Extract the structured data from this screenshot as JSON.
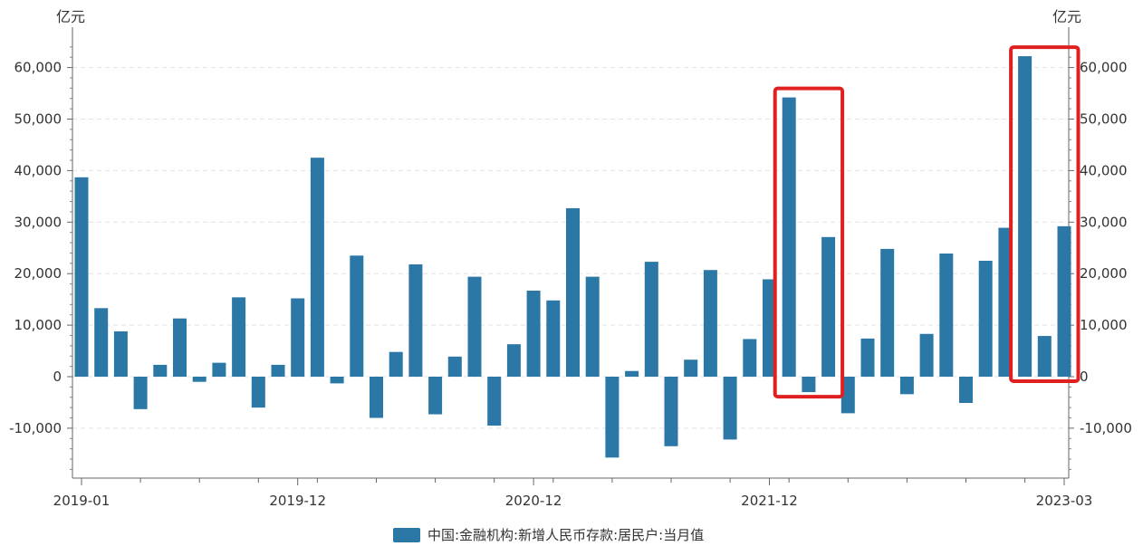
{
  "chart_data": {
    "type": "bar",
    "unit_left": "亿元",
    "unit_right": "亿元",
    "ylim": [
      -20000,
      65000
    ],
    "yticks": [
      -10000,
      0,
      10000,
      20000,
      30000,
      40000,
      50000,
      60000
    ],
    "ytick_labels": [
      "-10,000",
      "0",
      "10,000",
      "20,000",
      "30,000",
      "40,000",
      "50,000",
      "60,000"
    ],
    "xtick_labels": [
      "2019-01",
      "2019-12",
      "2020-12",
      "2021-12",
      "2023-03"
    ],
    "x_first": "2019-01",
    "x_last": "2023-03",
    "grid": true,
    "legend_position": "bottom",
    "series": [
      {
        "name": "中国:金融机构:新增人民币存款:居民户:当月值",
        "color": "#2b78a7",
        "values": [
          38700,
          13300,
          8800,
          -6300,
          2300,
          11300,
          -1000,
          2700,
          15400,
          -6000,
          2300,
          15200,
          42500,
          -1300,
          23500,
          -8000,
          4800,
          21800,
          -7300,
          3900,
          19400,
          -9500,
          6300,
          16700,
          14800,
          32700,
          19400,
          -15700,
          1100,
          22300,
          -13500,
          3300,
          20700,
          -12200,
          7300,
          18900,
          54200,
          -3000,
          27100,
          -7100,
          7400,
          24800,
          -3400,
          8300,
          23900,
          -5100,
          22500,
          28900,
          62200,
          7900,
          29200
        ]
      }
    ],
    "highlights": [
      {
        "from": "2022-01",
        "to": "2022-03",
        "color": "#e02020"
      },
      {
        "from": "2023-01",
        "to": "2023-03",
        "color": "#e02020"
      }
    ]
  }
}
